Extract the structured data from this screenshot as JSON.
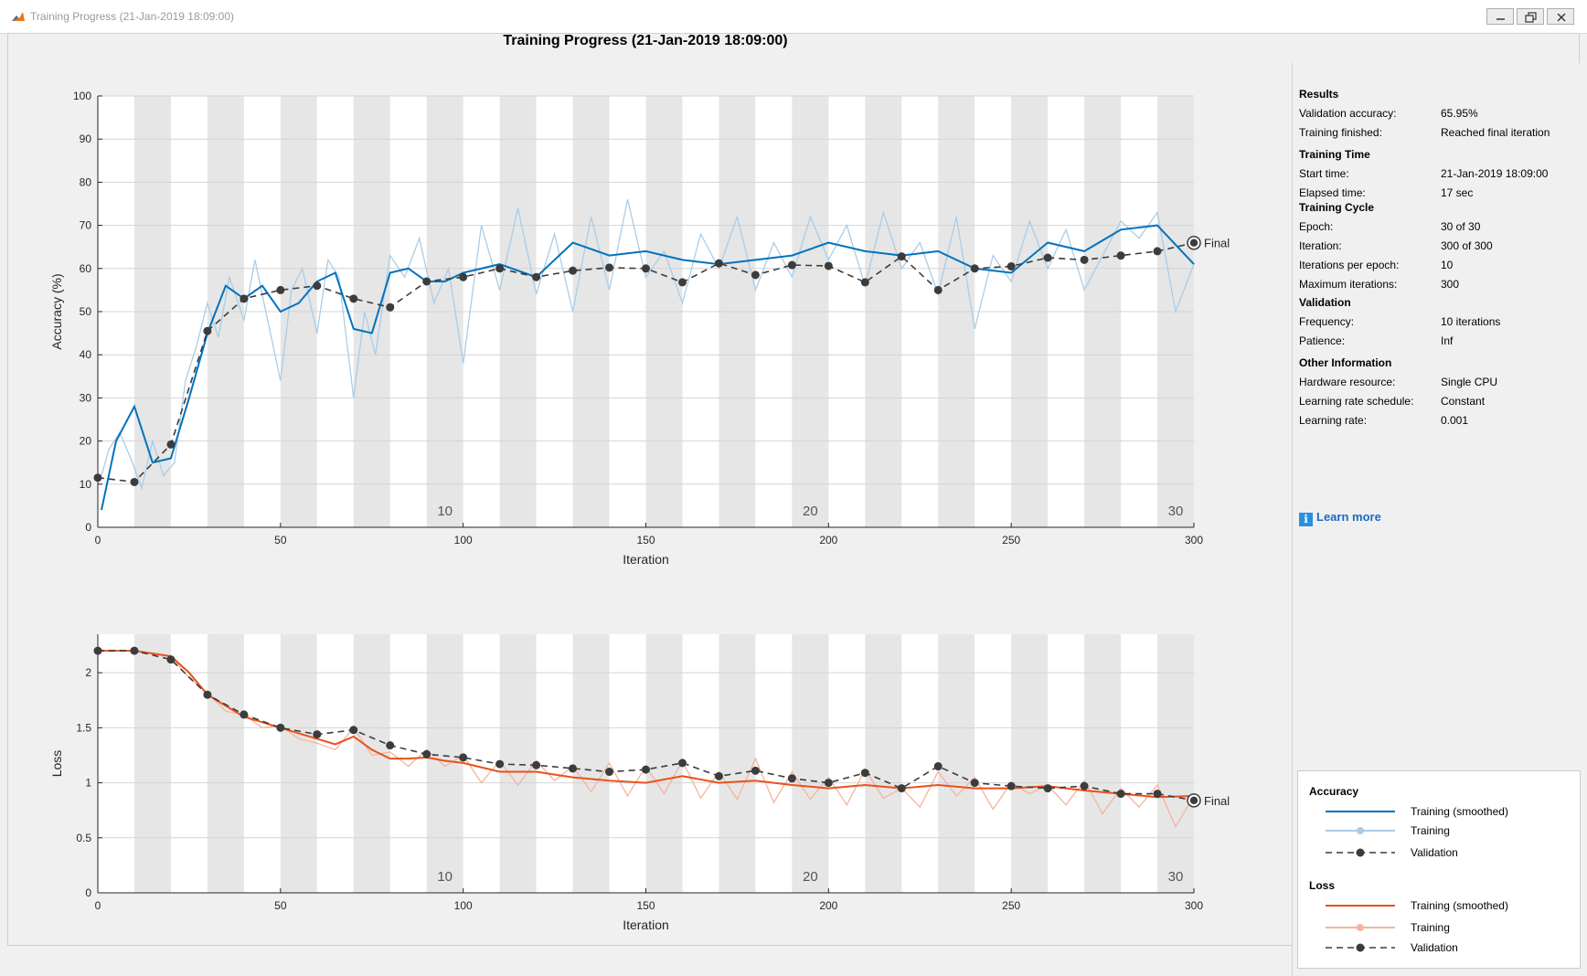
{
  "window": {
    "title": "Training Progress (21-Jan-2019 18:09:00)"
  },
  "figure": {
    "title": "Training Progress (21-Jan-2019 18:09:00)"
  },
  "colors": {
    "accuracy_smoothed": "#0072bd",
    "accuracy_raw": "#a9cde8",
    "loss_smoothed": "#e8521c",
    "loss_raw": "#f4b59b",
    "validation": "#3c3c3c",
    "epoch_shade": "#e6e6e6"
  },
  "panel": {
    "sections": [
      {
        "title": "Results",
        "rows": [
          {
            "label": "Validation accuracy:",
            "value": "65.95%"
          },
          {
            "label": "Training finished:",
            "value": "Reached final iteration"
          }
        ]
      },
      {
        "title": "Training Time",
        "rows": [
          {
            "label": "Start time:",
            "value": "21-Jan-2019 18:09:00"
          },
          {
            "label": "Elapsed time:",
            "value": "17 sec"
          }
        ]
      },
      {
        "title": "Training Cycle",
        "rows": [
          {
            "label": "Epoch:",
            "value": "30 of 30"
          },
          {
            "label": "Iteration:",
            "value": "300 of 300"
          },
          {
            "label": "Iterations per epoch:",
            "value": "10"
          },
          {
            "label": "Maximum iterations:",
            "value": "300"
          }
        ]
      },
      {
        "title": "Validation",
        "rows": [
          {
            "label": "Frequency:",
            "value": "10 iterations"
          },
          {
            "label": "Patience:",
            "value": "Inf"
          }
        ]
      },
      {
        "title": "Other Information",
        "rows": [
          {
            "label": "Hardware resource:",
            "value": "Single CPU"
          },
          {
            "label": "Learning rate schedule:",
            "value": "Constant"
          },
          {
            "label": "Learning rate:",
            "value": "0.001"
          }
        ]
      }
    ],
    "learn_more": "Learn more",
    "info_icon": "info-icon"
  },
  "legend": {
    "accuracy_heading": "Accuracy",
    "loss_heading": "Loss",
    "training_smoothed": "Training (smoothed)",
    "training": "Training",
    "validation": "Validation"
  },
  "chart_data": [
    {
      "type": "line",
      "name": "accuracy",
      "xlabel": "Iteration",
      "ylabel": "Accuracy (%)",
      "xlim": [
        0,
        300
      ],
      "ylim": [
        0,
        100
      ],
      "x_ticks": [
        0,
        50,
        100,
        150,
        200,
        250,
        300
      ],
      "y_ticks": [
        0,
        10,
        20,
        30,
        40,
        50,
        60,
        70,
        80,
        90,
        100
      ],
      "epoch_labels": [
        10,
        20,
        30
      ],
      "final_label": "Final",
      "final_value": 65.95,
      "grid": true,
      "series": [
        {
          "name": "Training (smoothed)",
          "x": [
            1,
            5,
            10,
            15,
            20,
            25,
            30,
            35,
            40,
            45,
            50,
            55,
            60,
            65,
            70,
            75,
            80,
            85,
            90,
            95,
            100,
            110,
            120,
            130,
            140,
            150,
            160,
            170,
            180,
            190,
            200,
            210,
            220,
            230,
            240,
            250,
            260,
            270,
            280,
            290,
            300
          ],
          "values": [
            4,
            20,
            28,
            15,
            16,
            30,
            45,
            56,
            53,
            56,
            50,
            52,
            57,
            59,
            46,
            45,
            59,
            60,
            57,
            57,
            59,
            61,
            58,
            66,
            63,
            64,
            62,
            61,
            62,
            63,
            66,
            64,
            63,
            64,
            60,
            59,
            66,
            64,
            69,
            70,
            61
          ]
        },
        {
          "name": "Training",
          "x": [
            1,
            3,
            6,
            9,
            12,
            15,
            18,
            21,
            24,
            27,
            30,
            33,
            36,
            40,
            43,
            46,
            50,
            53,
            56,
            60,
            63,
            66,
            70,
            73,
            76,
            80,
            84,
            88,
            92,
            96,
            100,
            105,
            110,
            115,
            120,
            125,
            130,
            135,
            140,
            145,
            150,
            155,
            160,
            165,
            170,
            175,
            180,
            185,
            190,
            195,
            200,
            205,
            210,
            215,
            220,
            225,
            230,
            235,
            240,
            245,
            250,
            255,
            260,
            265,
            270,
            275,
            280,
            285,
            290,
            295,
            300
          ],
          "values": [
            12,
            18,
            22,
            16,
            9,
            20,
            12,
            15,
            34,
            42,
            52,
            44,
            58,
            48,
            62,
            50,
            34,
            55,
            60,
            45,
            62,
            58,
            30,
            50,
            40,
            63,
            58,
            67,
            52,
            60,
            38,
            70,
            55,
            74,
            54,
            68,
            50,
            72,
            55,
            76,
            58,
            64,
            52,
            68,
            60,
            72,
            55,
            66,
            58,
            72,
            62,
            70,
            56,
            73,
            60,
            66,
            54,
            72,
            46,
            63,
            57,
            71,
            60,
            69,
            55,
            63,
            71,
            67,
            73,
            50,
            61
          ]
        },
        {
          "name": "Validation",
          "x": [
            0,
            10,
            20,
            30,
            40,
            50,
            60,
            70,
            80,
            90,
            100,
            110,
            120,
            130,
            140,
            150,
            160,
            170,
            180,
            190,
            200,
            210,
            220,
            230,
            240,
            250,
            260,
            270,
            280,
            290,
            300
          ],
          "values": [
            11.5,
            10.5,
            19.2,
            45.5,
            53,
            55,
            56,
            53,
            51,
            57,
            58,
            60,
            58,
            59.5,
            60.2,
            60,
            56.8,
            61.2,
            58.5,
            60.8,
            60.6,
            56.8,
            62.8,
            55,
            60,
            60.5,
            62.5,
            62,
            63,
            64,
            65.95
          ]
        }
      ]
    },
    {
      "type": "line",
      "name": "loss",
      "xlabel": "Iteration",
      "ylabel": "Loss",
      "xlim": [
        0,
        300
      ],
      "ylim": [
        0,
        2.35
      ],
      "x_ticks": [
        0,
        50,
        100,
        150,
        200,
        250,
        300
      ],
      "y_ticks": [
        0,
        0.5,
        1,
        1.5,
        2
      ],
      "y_tick_labels": [
        "0",
        "0.5",
        "1",
        "1.5",
        "2"
      ],
      "epoch_labels": [
        10,
        20,
        30
      ],
      "final_label": "Final",
      "grid": true,
      "series": [
        {
          "name": "Training (smoothed)",
          "x": [
            1,
            10,
            20,
            25,
            30,
            35,
            40,
            45,
            50,
            55,
            60,
            65,
            70,
            75,
            80,
            85,
            90,
            95,
            100,
            110,
            120,
            130,
            140,
            150,
            160,
            170,
            180,
            190,
            200,
            210,
            220,
            230,
            240,
            250,
            260,
            270,
            280,
            290,
            300
          ],
          "values": [
            2.2,
            2.2,
            2.15,
            2.0,
            1.8,
            1.7,
            1.6,
            1.55,
            1.5,
            1.45,
            1.4,
            1.35,
            1.42,
            1.3,
            1.22,
            1.22,
            1.23,
            1.2,
            1.18,
            1.1,
            1.1,
            1.05,
            1.02,
            1.0,
            1.06,
            1.0,
            1.02,
            0.98,
            0.95,
            0.98,
            0.95,
            0.98,
            0.95,
            0.95,
            0.97,
            0.93,
            0.9,
            0.87,
            0.88
          ]
        },
        {
          "name": "Training",
          "x": [
            1,
            10,
            20,
            25,
            30,
            35,
            40,
            45,
            50,
            55,
            60,
            65,
            70,
            75,
            80,
            85,
            90,
            95,
            100,
            105,
            110,
            115,
            120,
            125,
            130,
            135,
            140,
            145,
            150,
            155,
            160,
            165,
            170,
            175,
            180,
            185,
            190,
            195,
            200,
            205,
            210,
            215,
            220,
            225,
            230,
            235,
            240,
            245,
            250,
            255,
            260,
            265,
            270,
            275,
            280,
            285,
            290,
            295,
            300
          ],
          "values": [
            2.2,
            2.2,
            2.15,
            1.95,
            1.82,
            1.65,
            1.62,
            1.5,
            1.52,
            1.4,
            1.36,
            1.3,
            1.5,
            1.25,
            1.28,
            1.15,
            1.3,
            1.15,
            1.25,
            1.0,
            1.2,
            0.98,
            1.2,
            1.02,
            1.15,
            0.92,
            1.18,
            0.88,
            1.15,
            0.9,
            1.2,
            0.86,
            1.1,
            0.85,
            1.22,
            0.82,
            1.1,
            0.85,
            1.05,
            0.8,
            1.12,
            0.86,
            0.95,
            0.78,
            1.1,
            0.88,
            1.05,
            0.76,
            1.0,
            0.9,
            0.98,
            0.8,
            1.02,
            0.72,
            0.95,
            0.78,
            0.98,
            0.6,
            0.88
          ]
        },
        {
          "name": "Validation",
          "x": [
            0,
            10,
            20,
            30,
            40,
            50,
            60,
            70,
            80,
            90,
            100,
            110,
            120,
            130,
            140,
            150,
            160,
            170,
            180,
            190,
            200,
            210,
            220,
            230,
            240,
            250,
            260,
            270,
            280,
            290,
            300
          ],
          "values": [
            2.2,
            2.2,
            2.12,
            1.8,
            1.62,
            1.5,
            1.44,
            1.48,
            1.34,
            1.26,
            1.23,
            1.17,
            1.16,
            1.13,
            1.1,
            1.12,
            1.18,
            1.06,
            1.11,
            1.04,
            1.0,
            1.09,
            0.95,
            1.15,
            1.0,
            0.97,
            0.95,
            0.97,
            0.9,
            0.9,
            0.84
          ]
        }
      ]
    }
  ]
}
